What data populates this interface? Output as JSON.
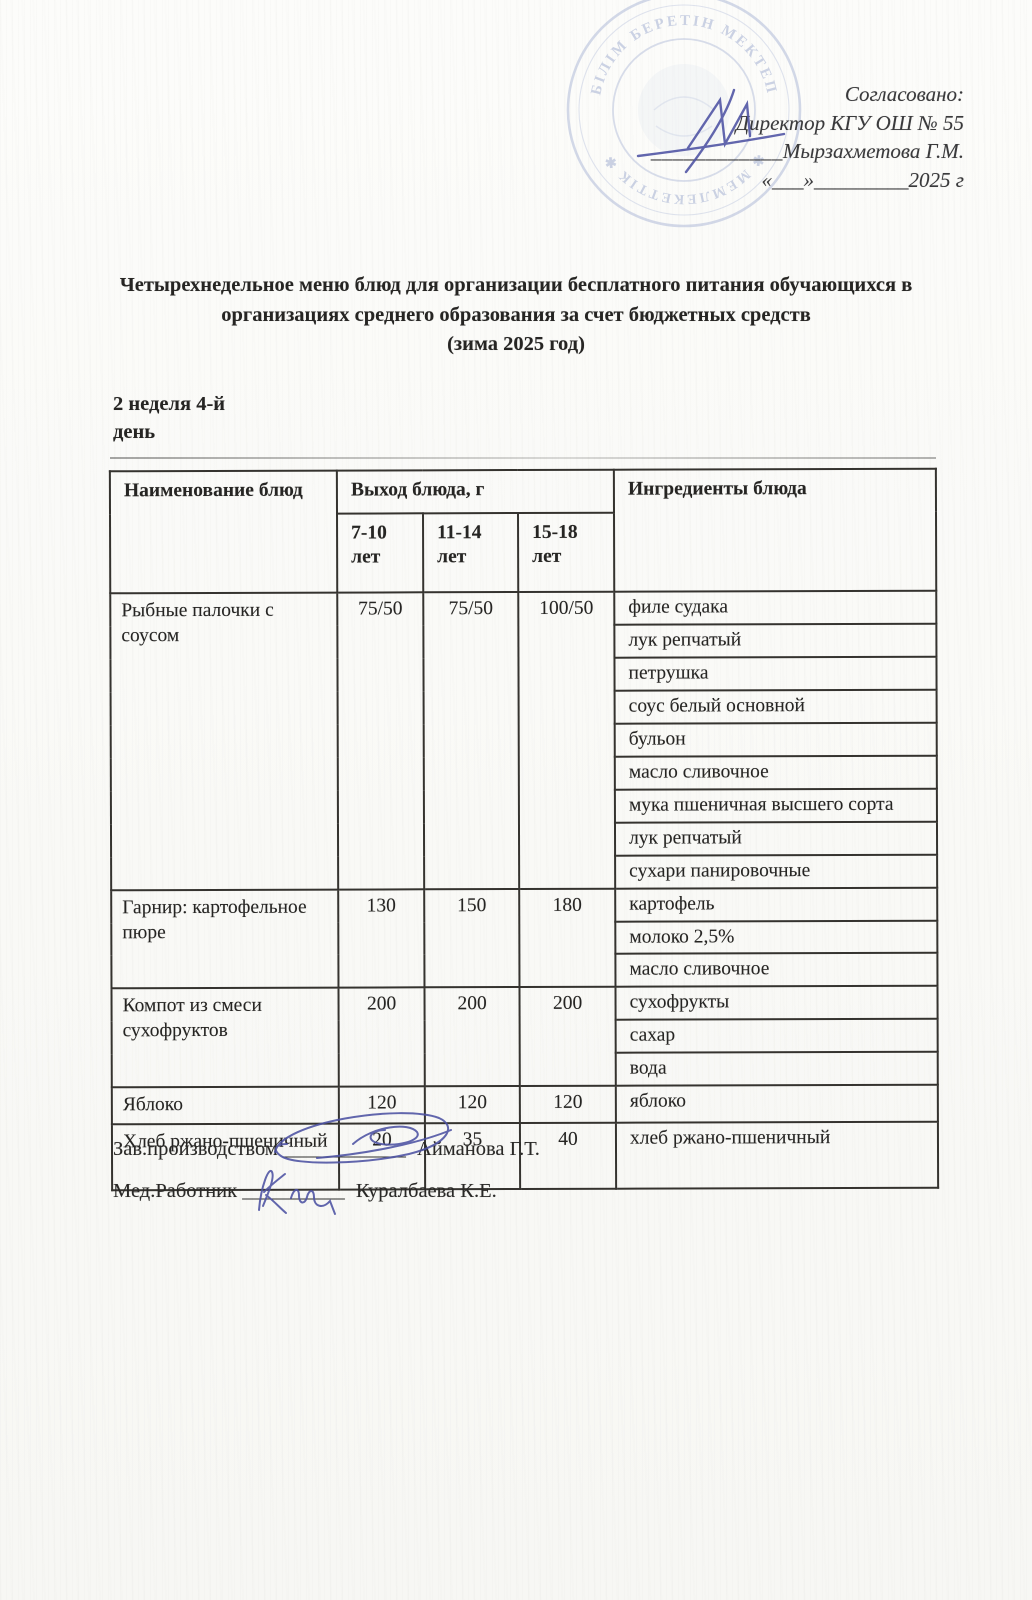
{
  "document": {
    "approval": {
      "label": "Согласовано:",
      "director_line": "Директор КГУ ОШ № 55",
      "blank_line": "____________",
      "director_name": "Мырзахметова Г.М.",
      "date_line": "«___»_________2025 г"
    },
    "stamp": {
      "arc_text_top": "БІЛІМ БЕРЕТІН МЕКТЕП",
      "arc_text_bottom": "✱ МЕМЛЕКЕТТІК ✱",
      "ink_color": "#8a9ac6"
    },
    "title": {
      "lines": [
        "Четырехнедельное меню блюд для организации бесплатного питания обучающихся в",
        "организациях среднего образования за счет бюджетных средств",
        "(зима 2025 год)"
      ]
    },
    "period": {
      "week": "2 неделя 4-й",
      "day": "день"
    },
    "menu_table": {
      "col_dish": "Наименование блюд",
      "col_output": "Выход блюда, г",
      "age_groups": [
        "7-10 лет",
        "11-14 лет",
        "15-18 лет"
      ],
      "col_ingredients": "Ингредиенты блюда",
      "rows": [
        {
          "dish": "Рыбные палочки с соусом",
          "portions": [
            "75/50",
            "75/50",
            "100/50"
          ],
          "ingredients": [
            "филе судака",
            "лук репчатый",
            "петрушка",
            "соус белый основной",
            "бульон",
            "масло сливочное",
            "мука пшеничная высшего сорта",
            "лук репчатый",
            "сухари панировочные"
          ]
        },
        {
          "dish": "Гарнир: картофельное пюре",
          "portions": [
            "130",
            "150",
            "180"
          ],
          "ingredients": [
            "картофель",
            "молоко 2,5%",
            "масло сливочное"
          ]
        },
        {
          "dish": "Компот из смеси сухофруктов",
          "portions": [
            "200",
            "200",
            "200"
          ],
          "ingredients": [
            "сухофрукты",
            "сахар",
            "вода"
          ]
        },
        {
          "dish": "Яблоко",
          "portions": [
            "120",
            "120",
            "120"
          ],
          "ingredients": [
            "яблоко"
          ]
        },
        {
          "dish": "Хлеб ржано-пшеничный",
          "portions": [
            "20",
            "35",
            "40"
          ],
          "ingredients": [
            "хлеб ржано-пшеничный"
          ]
        }
      ]
    },
    "signatures": [
      {
        "role": "Зав.производством",
        "blank": "____________",
        "name": "Айманова Г.Т."
      },
      {
        "role": "Мед.Работник",
        "blank": "__________",
        "name": "Куралбаева К.Е."
      }
    ],
    "colors": {
      "signature_ink": "#4d52a3",
      "stamp_ink": "#8a9ac6",
      "table_border": "#35332f"
    }
  }
}
